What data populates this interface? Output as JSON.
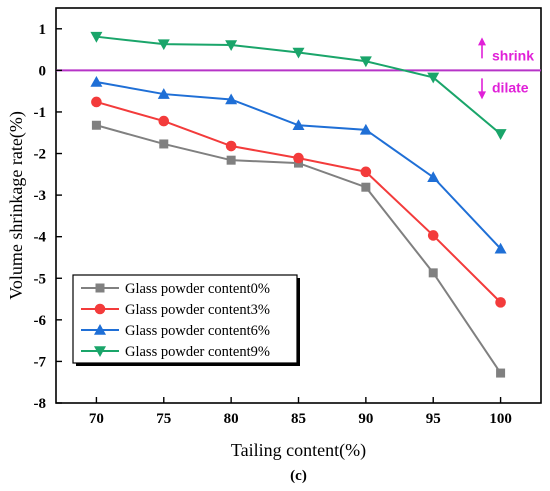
{
  "chart_data": {
    "type": "line",
    "xlabel": "Tailing content(%)",
    "ylabel": "Volume shrinkage rate(%)",
    "panel_label": "(c)",
    "x": [
      70,
      75,
      80,
      85,
      90,
      95,
      100
    ],
    "xlim": [
      67,
      103
    ],
    "ylim": [
      -8,
      1.5
    ],
    "x_ticks": [
      70,
      75,
      80,
      85,
      90,
      95,
      100
    ],
    "y_ticks": [
      1,
      0,
      -1,
      -2,
      -3,
      -4,
      -5,
      -6,
      -7,
      -8
    ],
    "grid": false,
    "legend_position": "bottom-left",
    "reference_line": {
      "y": 0,
      "color": "#b633c7"
    },
    "annotations": [
      {
        "text": "shrink",
        "arrow": "up",
        "color": "#e020d8"
      },
      {
        "text": "dilate",
        "arrow": "down",
        "color": "#e020d8"
      }
    ],
    "series": [
      {
        "name": "Glass powder content0%",
        "marker": "square",
        "color": "#808080",
        "values": [
          -1.32,
          -1.77,
          -2.16,
          -2.23,
          -2.81,
          -4.87,
          -7.28
        ]
      },
      {
        "name": "Glass powder content3%",
        "marker": "circle",
        "color": "#f33b3b",
        "values": [
          -0.76,
          -1.22,
          -1.82,
          -2.11,
          -2.44,
          -3.97,
          -5.58
        ]
      },
      {
        "name": "Glass powder content6%",
        "marker": "triangle-up",
        "color": "#1f6fd6",
        "values": [
          -0.28,
          -0.57,
          -0.7,
          -1.32,
          -1.43,
          -2.57,
          -4.29
        ]
      },
      {
        "name": "Glass powder content9%",
        "marker": "triangle-down",
        "color": "#1aa56a",
        "values": [
          0.81,
          0.63,
          0.61,
          0.43,
          0.22,
          -0.17,
          -1.53
        ]
      }
    ]
  }
}
